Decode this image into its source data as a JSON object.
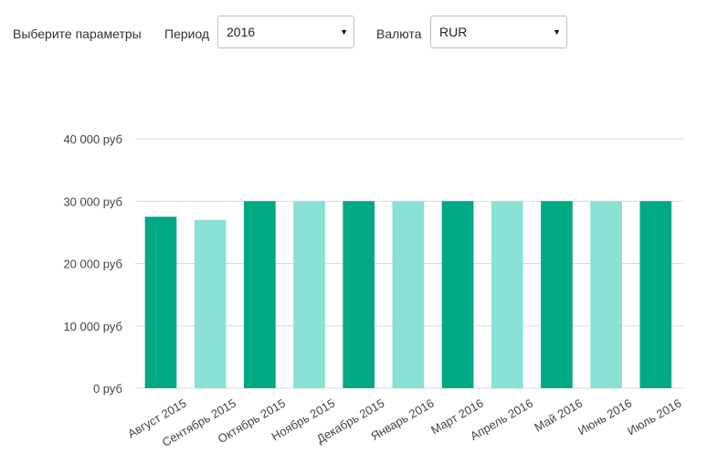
{
  "filters": {
    "prompt": "Выберите параметры",
    "period": {
      "label": "Период",
      "value": "2016"
    },
    "currency": {
      "label": "Валюта",
      "value": "RUR"
    }
  },
  "icons": {
    "dropdown": "caret-down-icon"
  },
  "colors": {
    "bar_dark": "#00a884",
    "bar_light": "#8be1d5",
    "grid": "#d9d9d9"
  },
  "chart_data": {
    "type": "bar",
    "categories": [
      "Август 2015",
      "Сентябрь 2015",
      "Октябрь 2015",
      "Ноябрь 2015",
      "Декабрь 2015",
      "Январь 2016",
      "Март 2016",
      "Апрель 2016",
      "Май 2016",
      "Июнь 2016",
      "Июль 2016"
    ],
    "values": [
      27500,
      27000,
      30000,
      30000,
      30000,
      30000,
      30000,
      30000,
      30000,
      30000,
      30000
    ],
    "ylim": [
      0,
      40000
    ],
    "yticks": [
      0,
      10000,
      20000,
      30000,
      40000
    ],
    "ytick_labels": [
      "0 руб",
      "10 000 руб",
      "20 000 руб",
      "30 000 руб",
      "40 000 руб"
    ],
    "grid": true,
    "legend": "none",
    "bar_colors_alternate": [
      "#00a884",
      "#8be1d5"
    ]
  }
}
